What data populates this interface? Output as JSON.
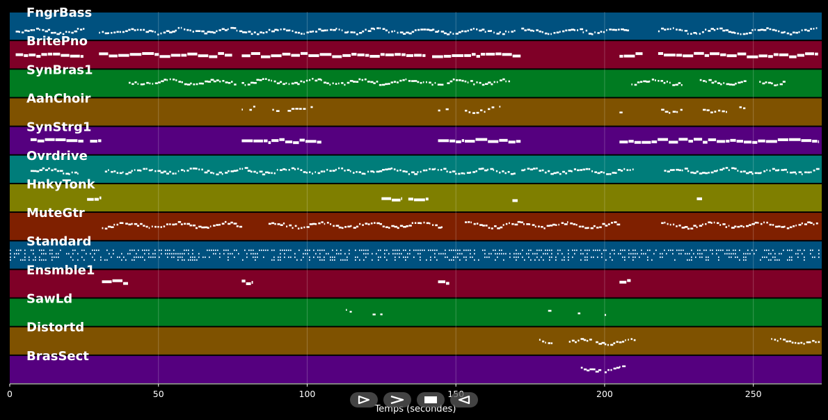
{
  "chart_data": {
    "type": "piano-roll",
    "xlabel": "Temps (secondes)",
    "xlim": [
      0,
      273
    ],
    "xticks": [
      0,
      50,
      100,
      150,
      200,
      250
    ],
    "grid": true,
    "tracks": [
      {
        "name": "FngrBass",
        "color": "#00517f",
        "segments": [
          [
            2,
            25
          ],
          [
            30,
            170
          ],
          [
            172,
            208
          ],
          [
            218,
            272
          ]
        ],
        "density": "dense",
        "register": 0.7
      },
      {
        "name": "BritePno",
        "color": "#7f0027",
        "segments": [
          [
            2,
            25
          ],
          [
            30,
            75
          ],
          [
            78,
            140
          ],
          [
            142,
            172
          ],
          [
            205,
            213
          ],
          [
            218,
            272
          ]
        ],
        "density": "heavy",
        "register": 0.45
      },
      {
        "name": "SynBras1",
        "color": "#007b21",
        "segments": [
          [
            40,
            76
          ],
          [
            78,
            145
          ],
          [
            147,
            168
          ],
          [
            209,
            226
          ],
          [
            232,
            247
          ],
          [
            252,
            260
          ]
        ],
        "density": "dense",
        "register": 0.4
      },
      {
        "name": "AahChoir",
        "color": "#7f5200",
        "segments": [
          [
            78,
            82
          ],
          [
            87,
            102
          ],
          [
            144,
            147
          ],
          [
            153,
            167
          ],
          [
            205,
            208
          ],
          [
            219,
            229
          ],
          [
            233,
            242
          ],
          [
            244,
            247
          ]
        ],
        "density": "sparse",
        "register": 0.35
      },
      {
        "name": "SynStrg1",
        "color": "#55007f",
        "segments": [
          [
            7,
            25
          ],
          [
            27,
            31
          ],
          [
            78,
            88
          ],
          [
            88,
            105
          ],
          [
            144,
            153
          ],
          [
            153,
            172
          ],
          [
            205,
            272
          ]
        ],
        "density": "heavy",
        "register": 0.45
      },
      {
        "name": "Ovrdrive",
        "color": "#007d7a",
        "segments": [
          [
            7,
            23
          ],
          [
            32,
            78
          ],
          [
            78,
            170
          ],
          [
            172,
            210
          ],
          [
            220,
            272
          ]
        ],
        "density": "dense",
        "register": 0.55
      },
      {
        "name": "HnkyTonk",
        "color": "#7f7f00",
        "segments": [
          [
            26,
            31
          ],
          [
            125,
            132
          ],
          [
            134,
            141
          ],
          [
            169,
            171
          ],
          [
            231,
            233
          ]
        ],
        "density": "heavy",
        "register": 0.5
      },
      {
        "name": "MuteGtr",
        "color": "#7f2000",
        "segments": [
          [
            31,
            78
          ],
          [
            87,
            145
          ],
          [
            153,
            205
          ],
          [
            219,
            272
          ]
        ],
        "density": "dense",
        "register": 0.4
      },
      {
        "name": "Standard",
        "color": "#00517f",
        "segments": [
          [
            0,
            22
          ],
          [
            22,
            272
          ]
        ],
        "density": "drum",
        "register": 0.5
      },
      {
        "name": "Ensmble1",
        "color": "#7f0027",
        "segments": [
          [
            31,
            40
          ],
          [
            78,
            82
          ],
          [
            144,
            148
          ],
          [
            205,
            209
          ]
        ],
        "density": "heavy",
        "register": 0.35
      },
      {
        "name": "SawLd",
        "color": "#007b21",
        "segments": [
          [
            113,
            115
          ],
          [
            122,
            125
          ],
          [
            174,
            175
          ],
          [
            181,
            182
          ],
          [
            191,
            192
          ],
          [
            200,
            201
          ]
        ],
        "density": "sparse",
        "register": 0.5
      },
      {
        "name": "Distortd",
        "color": "#7f5200",
        "segments": [
          [
            178,
            182
          ],
          [
            188,
            195
          ],
          [
            197,
            210
          ],
          [
            256,
            272
          ]
        ],
        "density": "dense",
        "register": 0.5
      },
      {
        "name": "BrasSect",
        "color": "#55007f",
        "segments": [
          [
            192,
            198
          ],
          [
            200,
            206
          ]
        ],
        "density": "dense",
        "register": 0.45
      }
    ]
  },
  "controls": [
    {
      "name": "play-icon"
    },
    {
      "name": "forward-icon"
    },
    {
      "name": "stop-icon"
    },
    {
      "name": "back-icon"
    }
  ]
}
